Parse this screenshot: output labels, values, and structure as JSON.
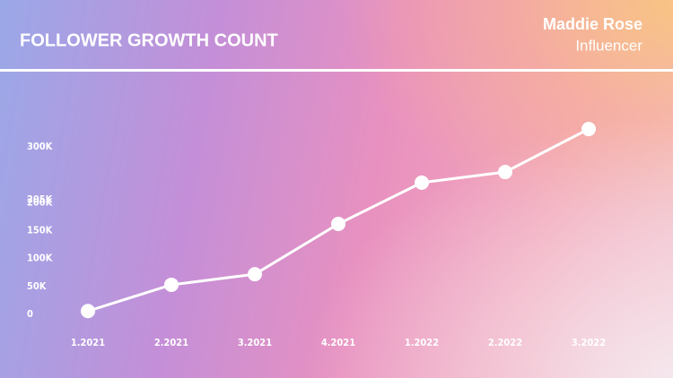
{
  "header": {
    "title": "FOLLOWER GROWTH COUNT",
    "name": "Maddie Rose",
    "role": "Influencer"
  },
  "chart_data": {
    "type": "line",
    "categories": [
      "1.2021",
      "2.2021",
      "3.2021",
      "4.2021",
      "1.2022",
      "2.2022",
      "3.2022"
    ],
    "values": [
      6000,
      53000,
      72000,
      162000,
      236000,
      255000,
      332000
    ],
    "color": "#ffffff",
    "ylim": [
      0,
      300000
    ],
    "yticks": [
      {
        "value": 0,
        "label": "0"
      },
      {
        "value": 50000,
        "label": "50K"
      },
      {
        "value": 100000,
        "label": "100K"
      },
      {
        "value": 150000,
        "label": "150K"
      },
      {
        "value": 200000,
        "label": "200K"
      },
      {
        "value": 205000,
        "label": "205K"
      },
      {
        "value": 300000,
        "label": "300K"
      }
    ],
    "grid": false
  }
}
